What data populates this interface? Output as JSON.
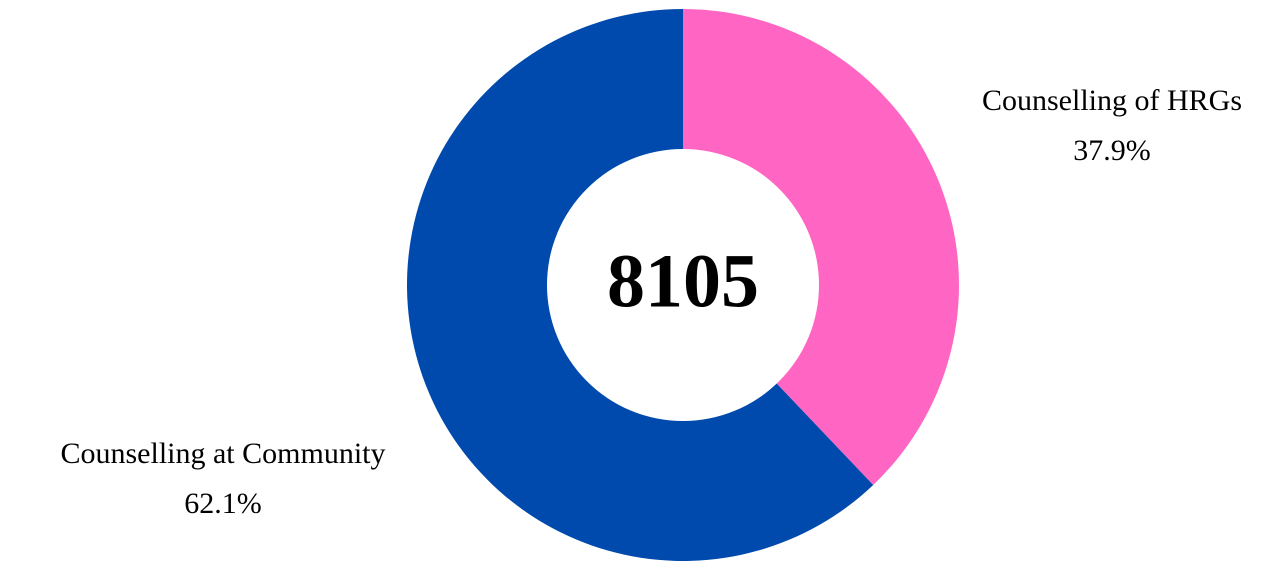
{
  "chart_data": {
    "type": "pie",
    "variant": "donut",
    "center_total": "8105",
    "start_angle_deg": 0,
    "direction": "clockwise",
    "slices": [
      {
        "name": "Counselling of HRGs",
        "value": 37.9,
        "value_label": "37.9%",
        "color": "#ff66c4"
      },
      {
        "name": "Counselling at Community",
        "value": 62.1,
        "value_label": "62.1%",
        "color": "#004aad"
      }
    ]
  }
}
